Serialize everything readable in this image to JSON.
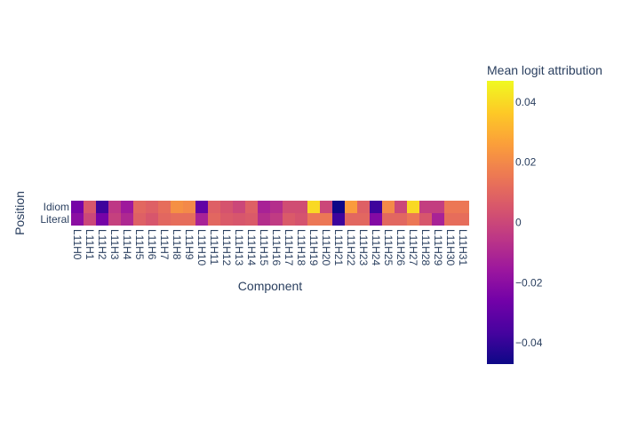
{
  "chart_data": {
    "type": "heatmap",
    "title": "",
    "xlabel": "Component",
    "ylabel": "Position",
    "rows": [
      "Idiom",
      "Literal"
    ],
    "columns": [
      "L11H0",
      "L11H1",
      "L11H2",
      "L11H3",
      "L11H4",
      "L11H5",
      "L11H6",
      "L11H7",
      "L11H8",
      "L11H9",
      "L11H10",
      "L11H11",
      "L11H12",
      "L11H13",
      "L11H14",
      "L11H15",
      "L11H16",
      "L11H17",
      "L11H18",
      "L11H19",
      "L11H20",
      "L11H21",
      "L11H22",
      "L11H23",
      "L11H24",
      "L11H25",
      "L11H26",
      "L11H27",
      "L11H28",
      "L11H29",
      "L11H30",
      "L11H31"
    ],
    "values": [
      [
        -0.025,
        0.005,
        -0.038,
        -0.005,
        -0.015,
        0.01,
        0.008,
        0.012,
        0.022,
        0.02,
        -0.03,
        0.008,
        0.004,
        0.0,
        0.008,
        -0.012,
        -0.008,
        0.002,
        0.002,
        0.04,
        0.0,
        -0.047,
        0.025,
        0.008,
        -0.038,
        0.02,
        0.0,
        0.04,
        -0.003,
        -0.003,
        0.015,
        0.015
      ],
      [
        -0.02,
        0.0,
        -0.025,
        -0.002,
        -0.01,
        0.008,
        0.005,
        0.01,
        0.012,
        0.012,
        -0.012,
        0.01,
        0.006,
        0.005,
        0.006,
        -0.008,
        -0.004,
        0.006,
        0.004,
        0.015,
        0.015,
        -0.038,
        0.01,
        0.01,
        -0.022,
        0.01,
        0.01,
        0.015,
        0.005,
        -0.012,
        0.012,
        0.012
      ]
    ],
    "colorbar": {
      "title": "Mean logit attribution",
      "zmin": -0.047,
      "zmax": 0.047,
      "tickvals": [
        0.04,
        0.02,
        0,
        -0.02,
        -0.04
      ],
      "ticktext": [
        "0.04",
        "0.02",
        "0",
        "−0.02",
        "−0.04"
      ],
      "colorscale": [
        "#0d0887",
        "#46039f",
        "#7201a8",
        "#9c179e",
        "#bd3786",
        "#d8576b",
        "#ed7953",
        "#fb9f3a",
        "#fdca26",
        "#f0f921"
      ]
    },
    "grid": false,
    "legend": "none"
  }
}
